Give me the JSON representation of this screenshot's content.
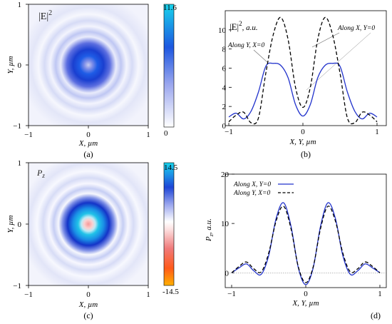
{
  "panels": {
    "a": {
      "panel_label": "(a)",
      "field_symbol": "|E|",
      "field_power": "2",
      "xlabel": "X, µm",
      "ylabel": "Y, µm",
      "x_ticks": [
        "−1",
        "0",
        "1"
      ],
      "y_ticks": [
        "1",
        "0",
        "−1"
      ],
      "colorbar": {
        "max": "11.6",
        "min": "0"
      }
    },
    "b": {
      "panel_label": "(b)",
      "ylabel_symbol": "|E|",
      "ylabel_power": "2",
      "ylabel_unit": ", a.u.",
      "xlabel": "X, Y, µm",
      "x_ticks": [
        "−1",
        "0",
        "1"
      ],
      "y_ticks": [
        "0",
        "2",
        "4",
        "6",
        "8",
        "10"
      ],
      "annotation_solid": "Along X, Y=0",
      "annotation_dashed": "Along Y, X=0"
    },
    "c": {
      "panel_label": "(c)",
      "field_symbol": "P",
      "field_sub": "z",
      "xlabel": "X, µm",
      "ylabel": "Y, µm",
      "x_ticks": [
        "−1",
        "0",
        "1"
      ],
      "y_ticks": [
        "1",
        "0",
        "−1"
      ],
      "colorbar": {
        "max": "14.5",
        "min": "-14.5"
      }
    },
    "d": {
      "panel_label": "(d)",
      "ylabel_symbol": "P",
      "ylabel_sub": "z",
      "ylabel_unit": ", a.u.",
      "xlabel": "X, Y, µm",
      "x_ticks": [
        "−1",
        "0",
        "1"
      ],
      "y_ticks": [
        "0",
        "10",
        "20"
      ],
      "legend": [
        "Along X, Y=0",
        "Along Y, X=0"
      ]
    }
  },
  "colors": {
    "solid_line": "#2233cc",
    "dashed_line": "#000000",
    "intensity_low": "#ffffff",
    "intensity_mid": "#1f5fe0",
    "intensity_peak": "#12c7e8",
    "negative_peak": "#ff7a1a"
  },
  "chart_data": [
    {
      "type": "heatmap",
      "panel": "a",
      "quantity": "|E|^2",
      "x_range": [
        -1,
        1
      ],
      "y_range": [
        -1,
        1
      ],
      "value_range": [
        0,
        11.6
      ],
      "pattern": "central weak spot inside a bright ring of radius about 0.35 µm, with faint outer rings"
    },
    {
      "type": "line",
      "panel": "b",
      "xlim": [
        -1,
        1
      ],
      "ylim": [
        0,
        12
      ],
      "x": [
        -1.0,
        -0.9,
        -0.8,
        -0.7,
        -0.6,
        -0.5,
        -0.4,
        -0.3,
        -0.2,
        -0.1,
        0.0,
        0.1,
        0.2,
        0.3,
        0.4,
        0.5,
        0.6,
        0.7,
        0.8,
        0.9,
        1.0
      ],
      "series": [
        {
          "name": "Along X, Y=0",
          "style": "solid",
          "values": [
            0.9,
            1.3,
            0.7,
            1.5,
            3.5,
            6.2,
            6.5,
            6.3,
            5.0,
            2.2,
            1.0,
            2.2,
            5.0,
            6.3,
            6.5,
            6.2,
            3.5,
            1.5,
            0.7,
            1.3,
            0.9
          ]
        },
        {
          "name": "Along Y, X=0",
          "style": "dashed",
          "values": [
            0.4,
            1.1,
            1.4,
            0.3,
            0.8,
            5.5,
            9.5,
            11.3,
            9.0,
            4.0,
            1.9,
            4.0,
            9.0,
            11.3,
            9.5,
            5.5,
            0.8,
            0.3,
            1.4,
            1.1,
            0.4
          ]
        }
      ]
    },
    {
      "type": "heatmap",
      "panel": "c",
      "quantity": "P_z",
      "x_range": [
        -1,
        1
      ],
      "y_range": [
        -1,
        1
      ],
      "value_range": [
        -14.5,
        14.5
      ],
      "pattern": "weak negative spot at centre inside a strong positive ring of radius about 0.35 µm, with faint outer rings"
    },
    {
      "type": "line",
      "panel": "d",
      "xlim": [
        -1,
        1
      ],
      "ylim": [
        -3,
        20
      ],
      "x": [
        -1.0,
        -0.9,
        -0.8,
        -0.7,
        -0.6,
        -0.5,
        -0.4,
        -0.3,
        -0.2,
        -0.1,
        0.0,
        0.1,
        0.2,
        0.3,
        0.4,
        0.5,
        0.6,
        0.7,
        0.8,
        0.9,
        1.0
      ],
      "series": [
        {
          "name": "Along X, Y=0",
          "style": "solid",
          "values": [
            0,
            1.0,
            1.8,
            0.4,
            -0.3,
            3.5,
            11.0,
            14.2,
            9.5,
            1.0,
            -2.4,
            1.0,
            9.5,
            14.2,
            11.0,
            3.5,
            -0.3,
            0.4,
            1.8,
            1.0,
            0
          ]
        },
        {
          "name": "Along Y, X=0",
          "style": "dashed",
          "values": [
            0,
            1.3,
            2.2,
            0.8,
            0.2,
            4.0,
            10.5,
            13.5,
            9.0,
            1.2,
            -2.0,
            1.2,
            9.0,
            13.5,
            10.5,
            4.0,
            0.2,
            0.8,
            2.2,
            1.3,
            0
          ]
        }
      ]
    }
  ]
}
